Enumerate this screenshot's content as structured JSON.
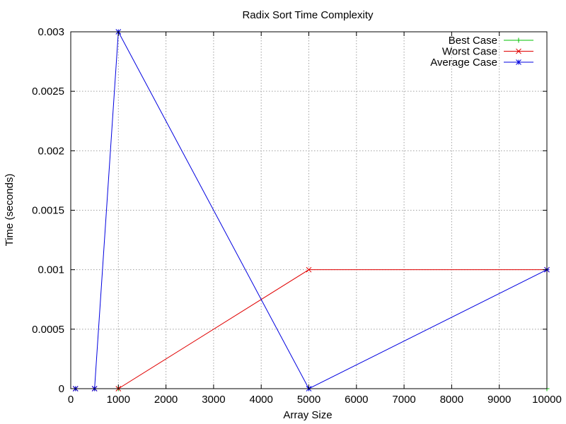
{
  "chart_data": {
    "type": "line",
    "title": "Radix Sort Time Complexity",
    "xlabel": "Array Size",
    "ylabel": "Time (seconds)",
    "xlim": [
      0,
      10000
    ],
    "ylim": [
      0,
      0.003
    ],
    "xticks": [
      "0",
      "1000",
      "2000",
      "3000",
      "4000",
      "5000",
      "6000",
      "7000",
      "8000",
      "9000",
      "10000"
    ],
    "yticks": [
      "0",
      "0.0005",
      "0.001",
      "0.0015",
      "0.002",
      "0.0025",
      "0.003"
    ],
    "grid": true,
    "legend_position": "top-right",
    "x": [
      100,
      500,
      1000,
      5000,
      10000
    ],
    "series": [
      {
        "name": "Best Case",
        "color": "#00c000",
        "marker": "plus",
        "values": [
          0,
          0,
          0,
          0,
          0
        ]
      },
      {
        "name": "Worst Case",
        "color": "#e00000",
        "marker": "cross",
        "values": [
          0,
          0,
          0,
          0.001,
          0.001
        ]
      },
      {
        "name": "Average Case",
        "color": "#0000e0",
        "marker": "star",
        "values": [
          0,
          0,
          0.003,
          0,
          0.001
        ]
      }
    ]
  }
}
